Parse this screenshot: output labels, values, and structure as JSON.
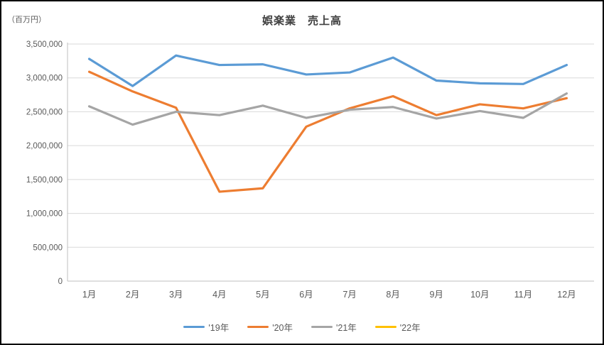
{
  "chart_data": {
    "type": "line",
    "title": "娯楽業　売上高",
    "unit_label": "（百万円）",
    "categories": [
      "1月",
      "2月",
      "3月",
      "4月",
      "5月",
      "6月",
      "7月",
      "8月",
      "9月",
      "10月",
      "11月",
      "12月"
    ],
    "series": [
      {
        "name": "'19年",
        "color": "#5B9BD5",
        "values": [
          3280000,
          2880000,
          3330000,
          3190000,
          3200000,
          3050000,
          3080000,
          3300000,
          2960000,
          2920000,
          2910000,
          3190000
        ]
      },
      {
        "name": "'20年",
        "color": "#ED7D31",
        "values": [
          3090000,
          2800000,
          2560000,
          1320000,
          1370000,
          2280000,
          2550000,
          2730000,
          2450000,
          2610000,
          2550000,
          2700000
        ]
      },
      {
        "name": "'21年",
        "color": "#A5A5A5",
        "values": [
          2580000,
          2310000,
          2500000,
          2450000,
          2590000,
          2410000,
          2530000,
          2570000,
          2400000,
          2510000,
          2410000,
          2770000
        ]
      },
      {
        "name": "'22年",
        "color": "#FFC000",
        "values": []
      }
    ],
    "ylim": [
      0,
      3500000
    ],
    "ytick_step": 500000,
    "ytick_labels": [
      "0",
      "500,000",
      "1,000,000",
      "1,500,000",
      "2,000,000",
      "2,500,000",
      "3,000,000",
      "3,500,000"
    ],
    "grid": "horizontal-only",
    "legend_position": "bottom",
    "colors": {
      "gridline": "#D9D9D9",
      "axis_line": "#BFBFBF",
      "tick_text": "#595959",
      "title_text": "#404040",
      "background": "#FFFFFF",
      "frame_border": "#000000"
    }
  }
}
